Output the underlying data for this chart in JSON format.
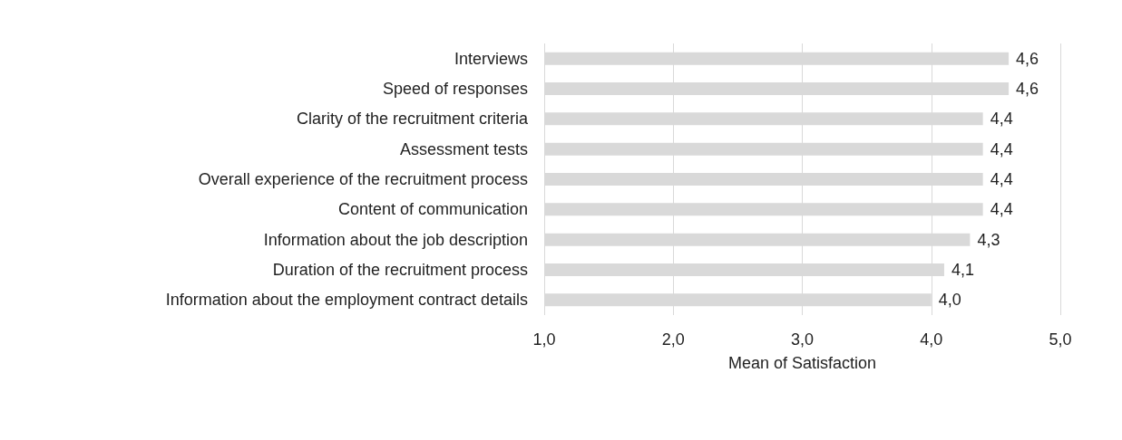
{
  "chart_data": {
    "type": "bar",
    "orientation": "horizontal",
    "xlabel": "Mean of Satisfaction",
    "categories": [
      "Interviews",
      "Speed of responses",
      "Clarity of the recruitment criteria",
      "Assessment tests",
      "Overall experience of the recruitment process",
      "Content of communication",
      "Information about the job description",
      "Duration of the recruitment process",
      "Information about the employment contract details"
    ],
    "values": [
      4.6,
      4.6,
      4.4,
      4.4,
      4.4,
      4.4,
      4.3,
      4.1,
      4.0
    ],
    "value_labels": [
      "4,6",
      "4,6",
      "4,4",
      "4,4",
      "4,4",
      "4,4",
      "4,3",
      "4,1",
      "4,0"
    ],
    "color": "#d9d9d9",
    "xlim": [
      1,
      5
    ],
    "xticks": [
      {
        "value": 1,
        "label": "1,0"
      },
      {
        "value": 2,
        "label": "2,0"
      },
      {
        "value": 3,
        "label": "3,0"
      },
      {
        "value": 4,
        "label": "4,0"
      },
      {
        "value": 5,
        "label": "5,0"
      }
    ],
    "grid": "x"
  }
}
